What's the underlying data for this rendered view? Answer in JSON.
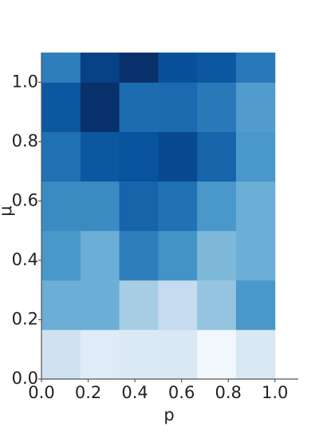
{
  "chart_data": {
    "type": "heatmap",
    "xlabel": "p",
    "ylabel": "μ",
    "colormap": "Blues",
    "xbins": [
      0,
      0.1667,
      0.3333,
      0.5,
      0.6667,
      0.8333,
      1.0
    ],
    "ybins": [
      0,
      0.1667,
      0.3333,
      0.5,
      0.6667,
      0.8333,
      1.0,
      1.1667
    ],
    "z": [
      [
        0.2,
        0.12,
        0.14,
        0.15,
        0.03,
        0.15
      ],
      [
        0.5,
        0.5,
        0.35,
        0.25,
        0.4,
        0.6
      ],
      [
        0.6,
        0.5,
        0.7,
        0.62,
        0.45,
        0.5
      ],
      [
        0.65,
        0.65,
        0.8,
        0.75,
        0.6,
        0.5
      ],
      [
        0.75,
        0.85,
        0.87,
        0.9,
        0.8,
        0.6
      ],
      [
        0.85,
        1.0,
        0.77,
        0.78,
        0.72,
        0.58
      ],
      [
        0.7,
        0.93,
        1.0,
        0.88,
        0.85,
        0.72
      ]
    ],
    "zlim": [
      0,
      1
    ],
    "xlim": [
      0,
      1.1
    ],
    "ylim": [
      0,
      1.1
    ],
    "xticks": [
      {
        "value": 0,
        "label": "0.0"
      },
      {
        "value": 0.2,
        "label": "0.2"
      },
      {
        "value": 0.4,
        "label": "0.4"
      },
      {
        "value": 0.6,
        "label": "0.6"
      },
      {
        "value": 0.8,
        "label": "0.8"
      },
      {
        "value": 1,
        "label": "1.0"
      }
    ],
    "yticks": [
      {
        "value": 0,
        "label": "0.0"
      },
      {
        "value": 0.2,
        "label": "0.2"
      },
      {
        "value": 0.4,
        "label": "0.4"
      },
      {
        "value": 0.6,
        "label": "0.6"
      },
      {
        "value": 0.8,
        "label": "0.8"
      },
      {
        "value": 1,
        "label": "1.0"
      }
    ]
  }
}
